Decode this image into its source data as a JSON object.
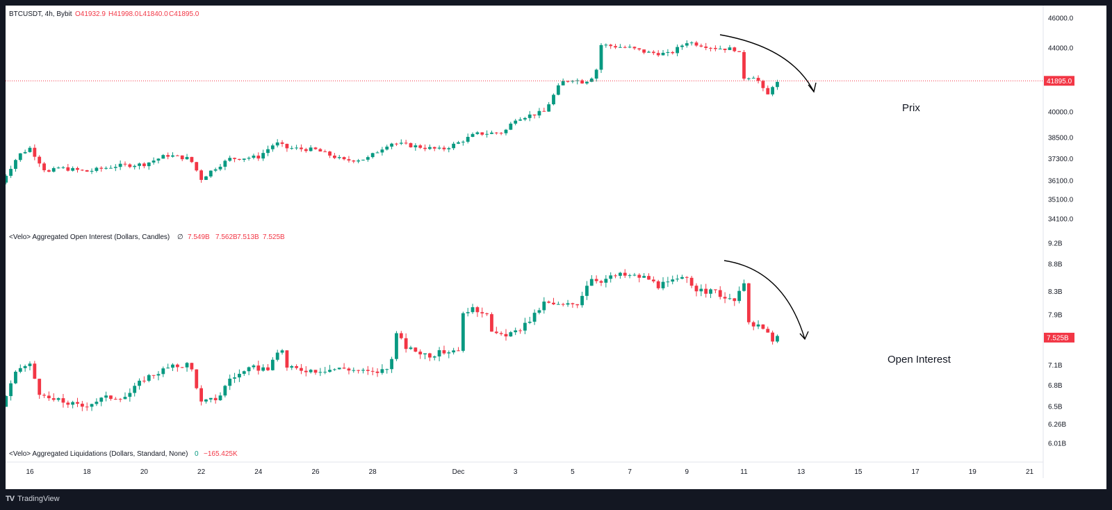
{
  "header": {
    "symbol": "BTCUSDT, 4h, Bybit",
    "o": "O41932.9",
    "h": "H41998.0",
    "l": "L41840.0",
    "c": "C41895.0"
  },
  "oi_header": {
    "title": "<Velo> Aggregated Open Interest (Dollars, Candles)",
    "symbol": "∅",
    "v1": "7.549B",
    "v2": "7.562B",
    "v3": "7.513B",
    "v4": "7.525B"
  },
  "liq_header": {
    "title": "<Velo> Aggregated Liquidations (Dollars, Standard, None)",
    "v1": "0",
    "v2": "−165.425K"
  },
  "annotations": {
    "price": "Prix",
    "oi": "Open Interest"
  },
  "footer": {
    "brand": "TradingView",
    "logo": "TV"
  },
  "colors": {
    "up": "#089981",
    "down": "#f23645",
    "text": "#131722",
    "bg": "#ffffff",
    "frame": "#131722"
  },
  "chart_data": [
    {
      "type": "candlestick",
      "title": "BTCUSDT, 4h, Bybit",
      "last_value": 41895.0,
      "last_label": "41895.0",
      "y_ticks": [
        "46000.0",
        "44000.0",
        "40000.0",
        "38500.0",
        "37300.0",
        "36100.0",
        "35100.0",
        "34100.0"
      ],
      "y_scale": "log",
      "x_ticks": [
        "16",
        "18",
        "20",
        "22",
        "24",
        "26",
        "28",
        "Dec",
        "3",
        "5",
        "7",
        "9",
        "11",
        "13",
        "15",
        "17",
        "19",
        "21"
      ],
      "x_tick_days": [
        16,
        18,
        20,
        22,
        24,
        26,
        28,
        31,
        33,
        35,
        37,
        39,
        41,
        43,
        45,
        47,
        49,
        51
      ],
      "anchors": [
        {
          "day": 15.0,
          "v": 36000
        },
        {
          "day": 15.6,
          "v": 37500
        },
        {
          "day": 16.0,
          "v": 37900
        },
        {
          "day": 16.6,
          "v": 36500
        },
        {
          "day": 17.0,
          "v": 36800
        },
        {
          "day": 18.0,
          "v": 36600
        },
        {
          "day": 19.0,
          "v": 36900
        },
        {
          "day": 20.0,
          "v": 37000
        },
        {
          "day": 20.8,
          "v": 37500
        },
        {
          "day": 21.6,
          "v": 37300
        },
        {
          "day": 22.0,
          "v": 36200
        },
        {
          "day": 22.4,
          "v": 36700
        },
        {
          "day": 23.0,
          "v": 37300
        },
        {
          "day": 24.0,
          "v": 37400
        },
        {
          "day": 24.6,
          "v": 38200
        },
        {
          "day": 25.0,
          "v": 37900
        },
        {
          "day": 26.0,
          "v": 37800
        },
        {
          "day": 27.0,
          "v": 37200
        },
        {
          "day": 27.8,
          "v": 37300
        },
        {
          "day": 28.6,
          "v": 38200
        },
        {
          "day": 29.5,
          "v": 38000
        },
        {
          "day": 30.4,
          "v": 37800
        },
        {
          "day": 31.0,
          "v": 38200
        },
        {
          "day": 31.6,
          "v": 38700
        },
        {
          "day": 32.6,
          "v": 38800
        },
        {
          "day": 33.0,
          "v": 39600
        },
        {
          "day": 34.0,
          "v": 40000
        },
        {
          "day": 34.6,
          "v": 41800
        },
        {
          "day": 35.0,
          "v": 42000
        },
        {
          "day": 35.4,
          "v": 41800
        },
        {
          "day": 35.8,
          "v": 42300
        },
        {
          "day": 36.0,
          "v": 44200
        },
        {
          "day": 37.0,
          "v": 44000
        },
        {
          "day": 37.6,
          "v": 43700
        },
        {
          "day": 38.4,
          "v": 43600
        },
        {
          "day": 39.0,
          "v": 44400
        },
        {
          "day": 40.0,
          "v": 44000
        },
        {
          "day": 40.8,
          "v": 43900
        },
        {
          "day": 41.0,
          "v": 42100
        },
        {
          "day": 41.4,
          "v": 42200
        },
        {
          "day": 41.8,
          "v": 40900
        },
        {
          "day": 42.0,
          "v": 41600
        },
        {
          "day": 42.3,
          "v": 41895
        }
      ]
    },
    {
      "type": "candlestick",
      "title": "<Velo> Aggregated Open Interest (Dollars, Candles)",
      "last_value": 7.525,
      "last_label": "7.525B",
      "y_ticks": [
        "9.2B",
        "8.8B",
        "8.3B",
        "7.9B",
        "7.1B",
        "6.8B",
        "6.5B",
        "6.26B",
        "6.01B"
      ],
      "y_scale": "log",
      "x_ticks": [
        "16",
        "18",
        "20",
        "22",
        "24",
        "26",
        "28",
        "Dec",
        "3",
        "5",
        "7",
        "9",
        "11",
        "13",
        "15",
        "17",
        "19",
        "21"
      ],
      "anchors": [
        {
          "day": 15.0,
          "v": 6.5
        },
        {
          "day": 15.6,
          "v": 7.05
        },
        {
          "day": 16.0,
          "v": 7.1
        },
        {
          "day": 16.4,
          "v": 6.62
        },
        {
          "day": 17.0,
          "v": 6.58
        },
        {
          "day": 17.8,
          "v": 6.5
        },
        {
          "day": 18.6,
          "v": 6.62
        },
        {
          "day": 19.4,
          "v": 6.65
        },
        {
          "day": 20.0,
          "v": 6.9
        },
        {
          "day": 20.8,
          "v": 7.05
        },
        {
          "day": 21.6,
          "v": 7.12
        },
        {
          "day": 22.0,
          "v": 6.55
        },
        {
          "day": 22.6,
          "v": 6.62
        },
        {
          "day": 23.0,
          "v": 6.9
        },
        {
          "day": 23.8,
          "v": 7.05
        },
        {
          "day": 24.4,
          "v": 7.05
        },
        {
          "day": 24.8,
          "v": 7.4
        },
        {
          "day": 25.0,
          "v": 7.05
        },
        {
          "day": 26.0,
          "v": 7.02
        },
        {
          "day": 27.0,
          "v": 7.05
        },
        {
          "day": 28.0,
          "v": 6.98
        },
        {
          "day": 28.6,
          "v": 7.05
        },
        {
          "day": 28.8,
          "v": 7.6
        },
        {
          "day": 29.2,
          "v": 7.35
        },
        {
          "day": 30.0,
          "v": 7.25
        },
        {
          "day": 31.0,
          "v": 7.35
        },
        {
          "day": 31.2,
          "v": 8.0
        },
        {
          "day": 32.0,
          "v": 7.95
        },
        {
          "day": 32.2,
          "v": 7.55
        },
        {
          "day": 33.0,
          "v": 7.6
        },
        {
          "day": 33.6,
          "v": 7.85
        },
        {
          "day": 34.0,
          "v": 8.1
        },
        {
          "day": 34.6,
          "v": 8.05
        },
        {
          "day": 35.2,
          "v": 8.1
        },
        {
          "day": 35.6,
          "v": 8.55
        },
        {
          "day": 36.0,
          "v": 8.5
        },
        {
          "day": 36.6,
          "v": 8.6
        },
        {
          "day": 37.6,
          "v": 8.55
        },
        {
          "day": 38.0,
          "v": 8.4
        },
        {
          "day": 39.0,
          "v": 8.55
        },
        {
          "day": 39.4,
          "v": 8.3
        },
        {
          "day": 40.0,
          "v": 8.3
        },
        {
          "day": 40.6,
          "v": 8.1
        },
        {
          "day": 41.0,
          "v": 8.4
        },
        {
          "day": 41.2,
          "v": 7.7
        },
        {
          "day": 41.6,
          "v": 7.7
        },
        {
          "day": 42.0,
          "v": 7.5
        },
        {
          "day": 42.3,
          "v": 7.525
        }
      ]
    },
    {
      "type": "bar",
      "title": "<Velo> Aggregated Liquidations (Dollars, Standard, None)",
      "values": [
        0,
        -165425
      ],
      "y_ticks": []
    }
  ]
}
